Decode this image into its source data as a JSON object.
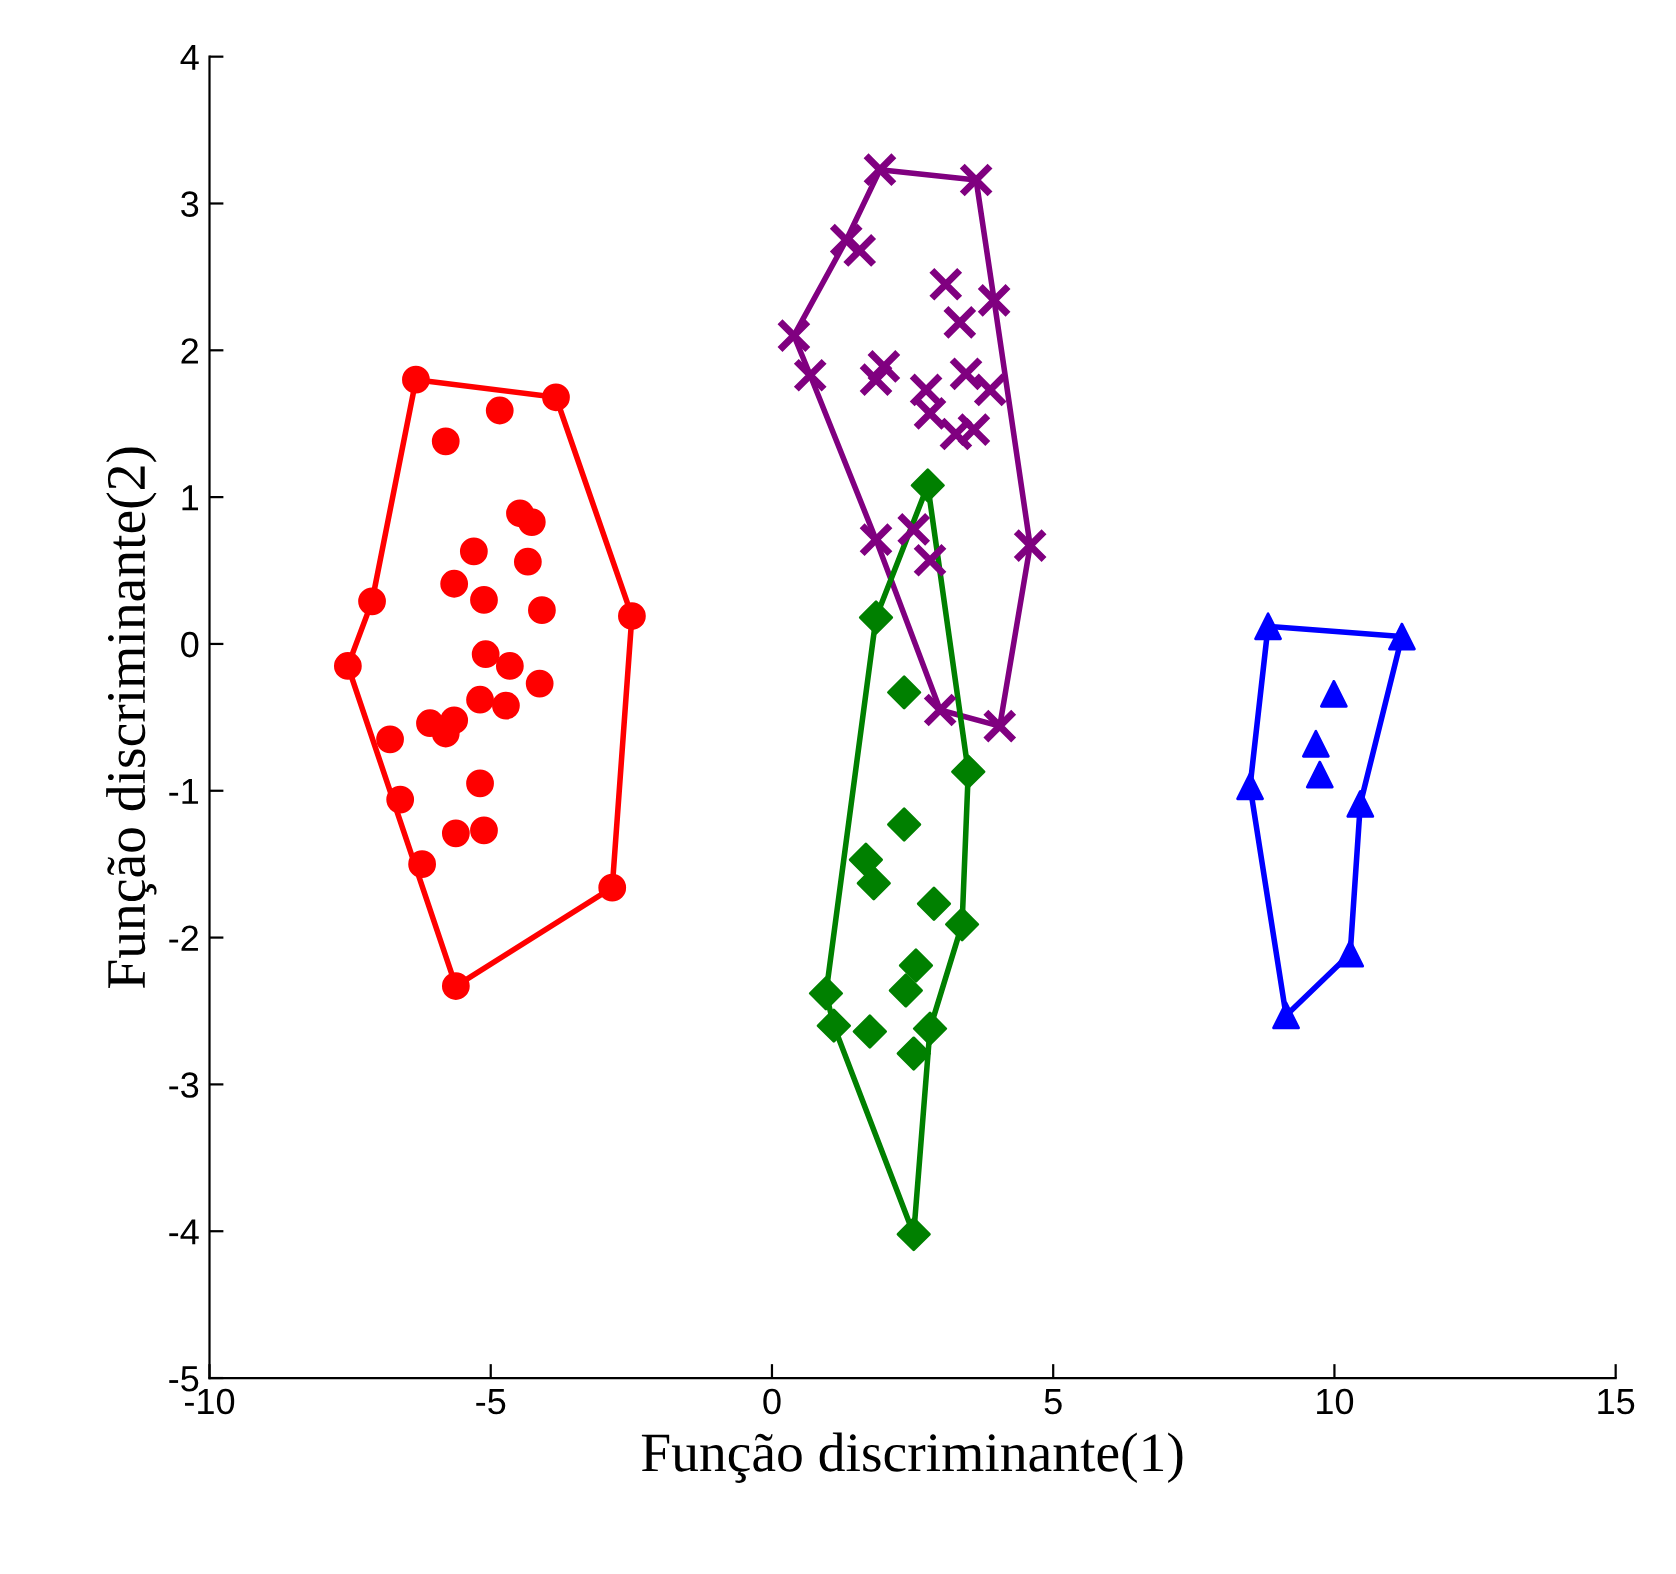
{
  "chart_data": {
    "type": "scatter",
    "xlabel": "Função discriminante(1)",
    "ylabel": "Função discriminante(2)",
    "xlim": [
      -10,
      15
    ],
    "xticks": [
      -10,
      -5,
      0,
      5,
      10,
      15
    ],
    "ylim": [
      -5,
      4
    ],
    "yticks": [
      -5,
      -4,
      -3,
      -2,
      -1,
      0,
      1,
      2,
      3,
      4
    ],
    "grid": false,
    "series": [
      {
        "marker": "circle",
        "color": "#ff0000",
        "x": [
          -6.33,
          -3.84,
          -2.49,
          -2.84,
          -5.62,
          -7.54,
          -7.11,
          -6.79,
          -6.61,
          -6.22,
          -4.84,
          -5.8,
          -4.48,
          -4.27,
          -5.3,
          -4.34,
          -5.65,
          -5.12,
          -4.09,
          -5.09,
          -4.66,
          -4.13,
          -5.19,
          -4.73,
          -5.65,
          -6.08,
          -5.8,
          -5.19,
          -5.62,
          -5.12
        ],
        "values": [
          1.8,
          1.68,
          0.19,
          -1.66,
          -2.33,
          -0.15,
          0.29,
          -0.65,
          -1.06,
          -1.5,
          1.59,
          1.38,
          0.89,
          0.83,
          0.63,
          0.56,
          0.41,
          0.3,
          0.23,
          -0.07,
          -0.15,
          -0.27,
          -0.38,
          -0.42,
          -0.52,
          -0.54,
          -0.61,
          -0.95,
          -1.29,
          -1.27
        ]
      },
      {
        "type": "line",
        "line_style": "solid",
        "color": "#ff0000",
        "x": [
          -7.54,
          -7.11,
          -6.33,
          -3.84,
          -2.49
        ],
        "values": [
          -0.15,
          0.29,
          1.8,
          1.68,
          0.19
        ]
      },
      {
        "type": "line",
        "line_style": "solid",
        "color": "#ff0000",
        "x": [
          -7.54,
          -5.62,
          -2.84,
          -2.49
        ],
        "values": [
          -0.15,
          -2.33,
          -1.66,
          0.19
        ]
      },
      {
        "marker": "cross",
        "color": "#800080",
        "x": [
          1.92,
          3.63,
          1.32,
          1.56,
          0.39,
          0.68,
          3.09,
          3.95,
          3.34,
          1.99,
          1.85,
          2.74,
          3.45,
          3.88,
          2.81,
          3.27,
          3.59,
          4.59,
          1.85,
          2.52,
          2.81,
          2.99,
          4.05
        ],
        "values": [
          3.23,
          3.16,
          2.75,
          2.68,
          2.1,
          1.83,
          2.45,
          2.34,
          2.19,
          1.89,
          1.8,
          1.73,
          1.84,
          1.73,
          1.57,
          1.43,
          1.46,
          0.67,
          0.71,
          0.78,
          0.57,
          -0.45,
          -0.56
        ]
      },
      {
        "type": "line",
        "line_style": "solid",
        "color": "#800080",
        "x": [
          0.39,
          1.32,
          1.92,
          3.63,
          3.95,
          4.59
        ],
        "values": [
          2.1,
          2.75,
          3.23,
          3.16,
          2.34,
          0.67
        ]
      },
      {
        "type": "line",
        "line_style": "solid",
        "color": "#800080",
        "x": [
          0.39,
          0.68,
          1.85,
          2.99,
          4.05,
          4.59
        ],
        "values": [
          2.1,
          1.83,
          0.71,
          -0.45,
          -0.56,
          0.67
        ]
      },
      {
        "marker": "diamond",
        "color": "#008000",
        "x": [
          2.77,
          1.85,
          2.35,
          3.49,
          2.35,
          1.67,
          1.81,
          2.88,
          3.38,
          2.56,
          2.38,
          0.96,
          1.1,
          1.74,
          2.81,
          2.52,
          2.52
        ],
        "values": [
          1.08,
          0.18,
          -0.33,
          -0.87,
          -1.23,
          -1.47,
          -1.63,
          -1.77,
          -1.91,
          -2.19,
          -2.36,
          -2.38,
          -2.6,
          -2.64,
          -2.62,
          -2.79,
          -4.02
        ]
      },
      {
        "type": "line",
        "line_style": "solid",
        "color": "#008000",
        "x": [
          0.96,
          1.85,
          2.77,
          3.49
        ],
        "values": [
          -2.38,
          0.18,
          1.08,
          -0.87
        ]
      },
      {
        "type": "line",
        "line_style": "solid",
        "color": "#008000",
        "x": [
          0.96,
          1.1,
          2.52,
          2.81,
          3.38,
          3.49
        ],
        "values": [
          -2.38,
          -2.6,
          -4.02,
          -2.62,
          -1.91,
          -0.87
        ]
      },
      {
        "marker": "triangle",
        "color": "#0000ff",
        "x": [
          8.82,
          11.2,
          9.99,
          9.67,
          9.74,
          8.5,
          10.46,
          10.28,
          9.14
        ],
        "values": [
          0.12,
          0.05,
          -0.34,
          -0.68,
          -0.89,
          -0.97,
          -1.09,
          -2.11,
          -2.53
        ]
      },
      {
        "type": "line",
        "line_style": "solid",
        "color": "#0000ff",
        "x": [
          8.5,
          8.82,
          11.2
        ],
        "values": [
          -0.97,
          0.12,
          0.05
        ]
      },
      {
        "type": "line",
        "line_style": "solid",
        "color": "#0000ff",
        "x": [
          8.5,
          9.14,
          10.28,
          10.46,
          11.2
        ],
        "values": [
          -0.97,
          -2.53,
          -2.11,
          -1.09,
          0.05
        ]
      }
    ]
  }
}
